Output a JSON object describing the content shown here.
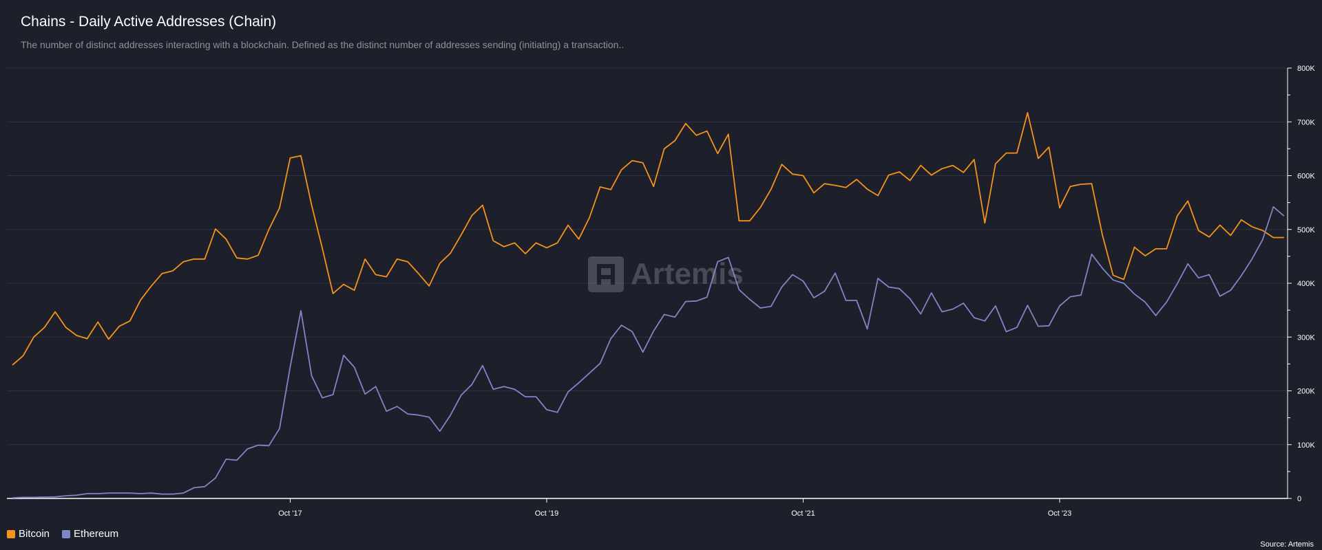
{
  "header": {
    "title": "Chains - Daily Active Addresses (Chain)",
    "subtitle": "The number of distinct addresses interacting with a blockchain. Defined as the distinct number of addresses sending (initiating) a transaction.."
  },
  "watermark": {
    "text": "Artemis"
  },
  "source": "Source: Artemis",
  "colors": {
    "background": "#1d1f2a",
    "bitcoin": "#f7931a",
    "ethereum": "#7f86c6",
    "grid": "#2f3240"
  },
  "chart_data": {
    "type": "line",
    "title": "Chains - Daily Active Addresses (Chain)",
    "x_start": "2015-08",
    "interval": "monthly",
    "x_ticks": [
      {
        "label": "Oct '17",
        "index": 26
      },
      {
        "label": "Oct '19",
        "index": 50
      },
      {
        "label": "Oct '21",
        "index": 74
      },
      {
        "label": "Oct '23",
        "index": 98
      }
    ],
    "ylim": [
      0,
      800000
    ],
    "y_ticks": [
      {
        "value": 0,
        "label": "0"
      },
      {
        "value": 100000,
        "label": "100K"
      },
      {
        "value": 200000,
        "label": "200K"
      },
      {
        "value": 300000,
        "label": "300K"
      },
      {
        "value": 400000,
        "label": "400K"
      },
      {
        "value": 500000,
        "label": "500K"
      },
      {
        "value": 600000,
        "label": "600K"
      },
      {
        "value": 700000,
        "label": "700K"
      },
      {
        "value": 800000,
        "label": "800K"
      }
    ],
    "legend_position": "bottom-left",
    "series": [
      {
        "name": "Bitcoin",
        "color": "#f7931a",
        "values": [
          248000,
          265000,
          300000,
          318000,
          347000,
          318000,
          303000,
          297000,
          328000,
          296000,
          320000,
          330000,
          369000,
          395000,
          418000,
          423000,
          440000,
          445000,
          445000,
          501000,
          482000,
          447000,
          445000,
          452000,
          500000,
          540000,
          633000,
          637000,
          545000,
          465000,
          381000,
          398000,
          387000,
          445000,
          416000,
          412000,
          445000,
          440000,
          418000,
          395000,
          437000,
          456000,
          490000,
          526000,
          545000,
          479000,
          468000,
          475000,
          455000,
          475000,
          466000,
          475000,
          508000,
          482000,
          522000,
          579000,
          574000,
          611000,
          628000,
          624000,
          580000,
          650000,
          665000,
          697000,
          675000,
          683000,
          641000,
          677000,
          516000,
          516000,
          541000,
          575000,
          621000,
          603000,
          600000,
          568000,
          585000,
          582000,
          578000,
          593000,
          575000,
          563000,
          601000,
          607000,
          591000,
          619000,
          601000,
          613000,
          619000,
          606000,
          630000,
          512000,
          622000,
          642000,
          642000,
          717000,
          632000,
          653000,
          540000,
          580000,
          584000,
          585000,
          490000,
          415000,
          407000,
          467000,
          451000,
          464000,
          464000,
          525000,
          553000,
          498000,
          486000,
          508000,
          489000,
          518000,
          505000,
          498000,
          485000,
          485000
        ]
      },
      {
        "name": "Ethereum",
        "color": "#7f86c6",
        "values": [
          1000,
          2000,
          2000,
          2500,
          3000,
          5000,
          6000,
          9000,
          9000,
          10000,
          10000,
          10000,
          9000,
          10000,
          8000,
          8000,
          10000,
          20000,
          22000,
          38000,
          73000,
          71000,
          92000,
          99000,
          98000,
          130000,
          245000,
          349000,
          228000,
          187000,
          193000,
          266000,
          244000,
          194000,
          208000,
          162000,
          171000,
          157000,
          155000,
          151000,
          125000,
          155000,
          192000,
          212000,
          247000,
          203000,
          208000,
          203000,
          189000,
          189000,
          165000,
          160000,
          198000,
          215000,
          233000,
          251000,
          297000,
          322000,
          310000,
          272000,
          311000,
          342000,
          337000,
          366000,
          367000,
          374000,
          440000,
          448000,
          388000,
          370000,
          354000,
          357000,
          393000,
          416000,
          404000,
          373000,
          385000,
          419000,
          368000,
          368000,
          315000,
          409000,
          393000,
          390000,
          371000,
          343000,
          382000,
          347000,
          352000,
          363000,
          336000,
          330000,
          358000,
          310000,
          318000,
          359000,
          320000,
          321000,
          358000,
          375000,
          378000,
          454000,
          428000,
          406000,
          400000,
          380000,
          365000,
          340000,
          365000,
          399000,
          436000,
          410000,
          416000,
          376000,
          387000,
          414000,
          445000,
          481000,
          542000,
          525000
        ]
      }
    ]
  }
}
